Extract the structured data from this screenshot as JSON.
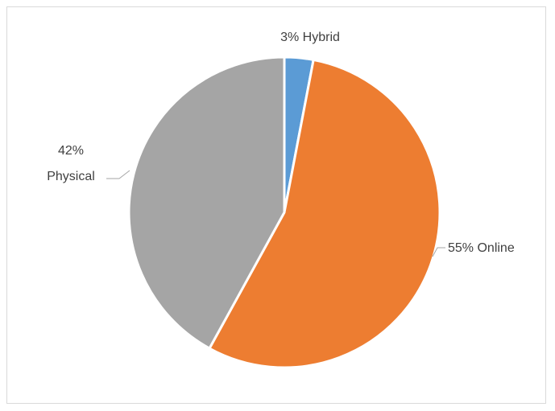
{
  "chart_data": {
    "type": "pie",
    "title": "",
    "start_angle_deg": 0,
    "direction": "clockwise",
    "slices": [
      {
        "label": "Hybrid",
        "value": 3,
        "display_text": "3% Hybrid",
        "color": "#5b9bd5"
      },
      {
        "label": "Online",
        "value": 55,
        "display_text": "55% Online",
        "color": "#ed7d31"
      },
      {
        "label": "Physical",
        "value": 42,
        "display_lines": [
          "42%",
          "Physical"
        ],
        "color": "#a5a5a5"
      }
    ],
    "legend": "none",
    "slice_border_color": "#ffffff"
  }
}
